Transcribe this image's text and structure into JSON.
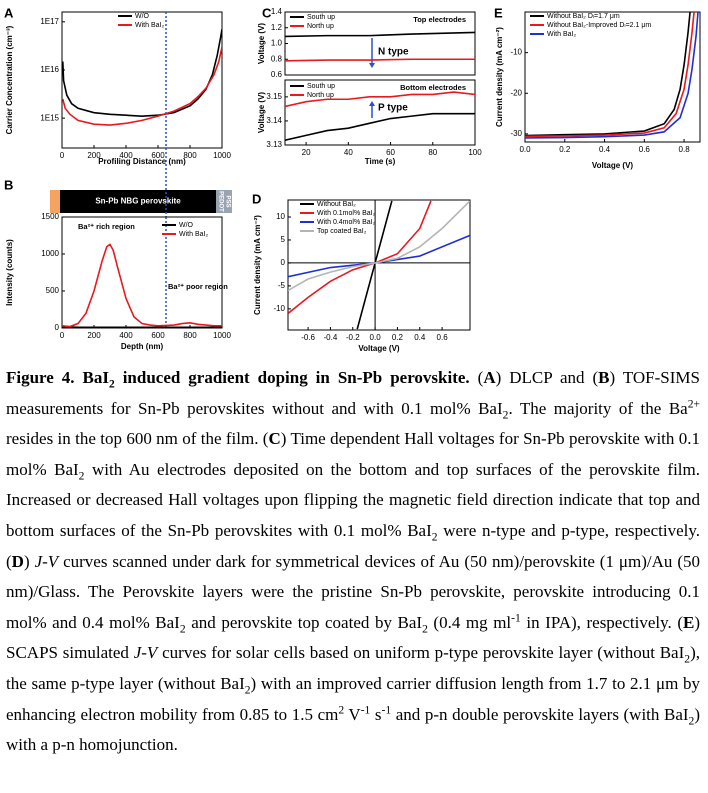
{
  "chart_data": [
    {
      "type": "line",
      "panel": "A",
      "ylabel": "Carrier Concentration (cm⁻³)",
      "xlabel": "Profiling Distance (nm)",
      "xlim": [
        0,
        1000
      ],
      "xticks": [
        0,
        200,
        400,
        600,
        800,
        1000
      ],
      "ylim": [
        240000000000000.0,
        1.6e+17
      ],
      "ylog": true,
      "yticks": [
        {
          "value": 1000000000000000.0,
          "label": "1E15"
        },
        {
          "value": 1e+16,
          "label": "1E16"
        },
        {
          "value": 1e+17,
          "label": "1E17"
        }
      ],
      "vline": 650,
      "vline_color": "#2a4fd0",
      "series": [
        {
          "name": "W/O",
          "color": "#000000",
          "x": [
            5,
            10,
            30,
            60,
            100,
            200,
            300,
            400,
            500,
            600,
            700,
            800,
            850,
            900,
            940,
            970,
            990,
            1000
          ],
          "values": [
            1.5e+16,
            6000000000000000.0,
            3000000000000000.0,
            2000000000000000.0,
            1600000000000000.0,
            1300000000000000.0,
            1200000000000000.0,
            1150000000000000.0,
            1100000000000000.0,
            1150000000000000.0,
            1300000000000000.0,
            1800000000000000.0,
            2500000000000000.0,
            4000000000000000.0,
            8000000000000000.0,
            2e+16,
            4.5e+16,
            7e+16
          ]
        },
        {
          "name": "With BaI₂",
          "color": "#e8191f",
          "x": [
            5,
            20,
            50,
            100,
            200,
            300,
            400,
            500,
            600,
            700,
            800,
            850,
            900,
            950,
            980,
            1000
          ],
          "values": [
            2500000000000000.0,
            1600000000000000.0,
            1200000000000000.0,
            900000000000000.0,
            750000000000000.0,
            720000000000000.0,
            780000000000000.0,
            900000000000000.0,
            1100000000000000.0,
            1400000000000000.0,
            2000000000000000.0,
            2800000000000000.0,
            4200000000000000.0,
            8000000000000000.0,
            1.5e+16,
            3e+16
          ]
        }
      ]
    },
    {
      "type": "line",
      "panel": "B",
      "ylabel": "Intensity (counts)",
      "xlabel": "Depth (nm)",
      "layer_labels": [
        "Sn-Pb NBG perovskite",
        "PEDOT",
        "PSS"
      ],
      "xlim": [
        0,
        1000
      ],
      "xticks": [
        0,
        200,
        400,
        600,
        800,
        1000
      ],
      "ylim": [
        0,
        1500
      ],
      "yticks": [
        0,
        500,
        1000,
        1500
      ],
      "vline": 650,
      "vline_color": "#2a4fd0",
      "annotations": [
        "Ba²⁺ rich region",
        "Ba²⁺ poor region"
      ],
      "series": [
        {
          "name": "W/O",
          "color": "#000000",
          "x": [
            0,
            100,
            200,
            300,
            400,
            500,
            600,
            700,
            800,
            900,
            1000
          ],
          "values": [
            20,
            10,
            10,
            10,
            10,
            10,
            10,
            10,
            10,
            10,
            10
          ]
        },
        {
          "name": "With BaI₂",
          "color": "#e8191f",
          "x": [
            0,
            50,
            100,
            150,
            200,
            250,
            280,
            300,
            320,
            350,
            400,
            450,
            500,
            550,
            600,
            650,
            700,
            750,
            800,
            850,
            900,
            950,
            1000
          ],
          "values": [
            30,
            20,
            60,
            200,
            500,
            900,
            1100,
            1130,
            1050,
            800,
            400,
            150,
            60,
            40,
            30,
            35,
            40,
            60,
            70,
            50,
            40,
            30,
            30
          ]
        }
      ]
    },
    {
      "type": "line",
      "panel": "C",
      "ylabel": "Voltage (V)",
      "xlim": [
        10,
        100
      ],
      "ylim": [
        0.6,
        1.4
      ],
      "yticks": [
        0.6,
        0.8,
        {
          "value": 1,
          "label": "1.0"
        },
        1.2,
        1.4
      ],
      "annotations": [
        "Top electrodes",
        "N type"
      ],
      "x": [
        10,
        30,
        50,
        70,
        100
      ],
      "series": [
        {
          "name": "South up",
          "color": "#000000",
          "values": [
            1.09,
            1.1,
            1.1,
            1.12,
            1.14
          ]
        },
        {
          "name": "North up",
          "color": "#e8191f",
          "values": [
            0.78,
            0.79,
            0.79,
            0.8,
            0.8
          ]
        }
      ]
    },
    {
      "type": "line",
      "ylabel": "Voltage (V)",
      "xlabel": "Time (s)",
      "xlim": [
        10,
        100
      ],
      "xticks": [
        20,
        40,
        60,
        80,
        100
      ],
      "ylim": [
        3.13,
        3.157
      ],
      "yticks": [
        3.13,
        3.14,
        3.15
      ],
      "annotations": [
        "Bottom electrodes",
        "P type"
      ],
      "x": [
        10,
        20,
        30,
        40,
        50,
        60,
        70,
        80,
        90,
        100
      ],
      "series": [
        {
          "name": "South up",
          "color": "#000000",
          "values": [
            3.132,
            3.134,
            3.136,
            3.137,
            3.139,
            3.141,
            3.142,
            3.143,
            3.143,
            3.143
          ]
        },
        {
          "name": "North up",
          "color": "#e8191f",
          "values": [
            3.146,
            3.148,
            3.149,
            3.149,
            3.15,
            3.15,
            3.151,
            3.151,
            3.152,
            3.151
          ]
        }
      ]
    },
    {
      "type": "line",
      "panel": "D",
      "ylabel": "Current density (mA cm⁻²)",
      "xlabel": "Voltage (V)",
      "xlim": [
        -0.78,
        0.85
      ],
      "xticks": [
        -0.6,
        -0.4,
        -0.2,
        {
          "value": 0,
          "label": "0.0"
        },
        0.2,
        0.4,
        0.6
      ],
      "ylim": [
        -14.6,
        13.7
      ],
      "yticks": [
        -10,
        -5,
        0,
        5,
        10
      ],
      "axes_at_zero": true,
      "series": [
        {
          "name": "Without BaI₂",
          "color": "#000000",
          "x": [
            -0.16,
            0,
            0.15
          ],
          "values": [
            -14.4,
            0,
            13.5
          ]
        },
        {
          "name": "With 0.1mol% BaI₂",
          "color": "#e8191f",
          "x": [
            -0.78,
            -0.6,
            -0.4,
            -0.2,
            0,
            0.2,
            0.4,
            0.5
          ],
          "values": [
            -11,
            -7.5,
            -4,
            -1.5,
            0,
            2,
            7.5,
            13.5
          ]
        },
        {
          "name": "With 0.4mol% BaI₂",
          "color": "#1f2fd6",
          "x": [
            -0.78,
            -0.4,
            0,
            0.4,
            0.85
          ],
          "values": [
            -3,
            -1,
            0,
            1.5,
            6
          ]
        },
        {
          "name": "Top coated BaI₂",
          "color": "#b4b4b4",
          "x": [
            -0.78,
            -0.6,
            -0.4,
            -0.2,
            0,
            0.2,
            0.4,
            0.6,
            0.85
          ],
          "values": [
            -6,
            -3.5,
            -2,
            -0.8,
            0,
            1,
            3.5,
            7.5,
            13.5
          ]
        }
      ]
    },
    {
      "type": "line",
      "panel": "E",
      "ylabel": "Current density (mA cm⁻²)",
      "xlabel": "Voltage (V)",
      "xlim": [
        0,
        0.88
      ],
      "xticks": [
        {
          "value": 0,
          "label": "0.0"
        },
        0.2,
        0.4,
        0.6,
        0.8
      ],
      "ylim": [
        -32,
        0
      ],
      "yticks": [
        -30,
        -20,
        -10
      ],
      "series": [
        {
          "name": "Without BaI₂ Dₗ=1.7 μm",
          "color": "#000000",
          "x": [
            0,
            0.2,
            0.4,
            0.6,
            0.7,
            0.75,
            0.78,
            0.8,
            0.82,
            0.83
          ],
          "values": [
            -30.4,
            -30.2,
            -30,
            -29.3,
            -27.5,
            -24,
            -19,
            -13,
            -5,
            0
          ]
        },
        {
          "name": "Without BaI₂-Improved Dₗ=2.1 μm",
          "color": "#e8191f",
          "x": [
            0,
            0.2,
            0.4,
            0.6,
            0.7,
            0.76,
            0.8,
            0.82,
            0.84,
            0.85
          ],
          "values": [
            -30.6,
            -30.5,
            -30.3,
            -29.8,
            -28.5,
            -25,
            -19,
            -13,
            -5,
            0
          ]
        },
        {
          "name": "With BaI₂",
          "color": "#1f2fd6",
          "x": [
            0,
            0.2,
            0.4,
            0.6,
            0.7,
            0.78,
            0.82,
            0.84,
            0.86,
            0.87
          ],
          "values": [
            -31,
            -30.9,
            -30.7,
            -30.3,
            -29.5,
            -26,
            -20,
            -14,
            -6,
            0
          ]
        }
      ]
    }
  ],
  "caption": [
    "Figure 4. BaI",
    "2",
    " induced gradient doping in Sn-Pb perovskite.",
    " (",
    "A",
    ") DLCP and (",
    "B",
    ") TOF-SIMS measurements for Sn-Pb perovskites without and with 0.1 mol% BaI",
    "2",
    ". The majority of the Ba",
    "2+",
    " resides in the top 600 nm of the film. (",
    "C",
    ") Time dependent Hall voltages for Sn-Pb perovskite with 0.1 mol% BaI",
    "2",
    " with Au electrodes deposited on the bottom and top surfaces of the perovskite film. Increased or decreased Hall voltages upon flipping the magnetic field direction indicate that top and bottom surfaces of the Sn-Pb perovskites with 0.1 mol% BaI",
    "2",
    " were n-type and p-type, respectively. (",
    "D",
    ") ",
    "J-V",
    " curves scanned under dark for symmetrical devices of Au (50 nm)/perovskite (1 μm)/Au (50 nm)/Glass. The Perovskite layers were the pristine Sn-Pb perovskite, perovskite introducing 0.1 mol% and 0.4 mol% BaI",
    "2",
    " and perovskite top coated by BaI",
    "2",
    " (0.4 mg ml",
    "-1",
    " in IPA), respectively. (",
    "E",
    ") SCAPS simulated ",
    "J-V",
    " curves for solar cells based on uniform p-type perovskite layer (without BaI",
    "2",
    "), the same p-type layer (without BaI",
    "2",
    ") with an improved carrier diffusion length from 1.7 to 2.1 μm by enhancing electron mobility from 0.85 to 1.5 cm",
    "2",
    " V",
    "-1",
    " s",
    "-1",
    " and p-n double perovskite layers (with BaI",
    "2",
    ") with a p-n homojunction."
  ]
}
